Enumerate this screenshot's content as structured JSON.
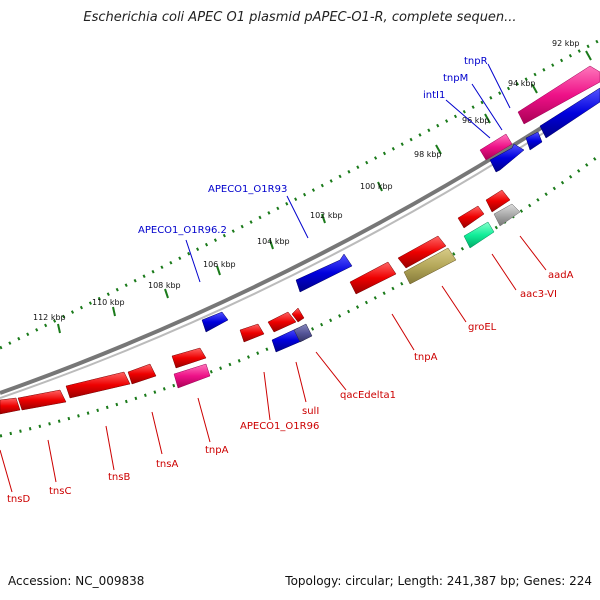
{
  "title": "Escherichia coli APEC O1 plasmid pAPEC-O1-R, complete sequen...",
  "footer": {
    "accession": "Accession: NC_009838",
    "summary": "Topology: circular; Length: 241,387 bp; Genes: 224"
  },
  "ticks": [
    "92 kbp",
    "94 kbp",
    "96 kbp",
    "98 kbp",
    "100 kbp",
    "102 kbp",
    "104 kbp",
    "106 kbp",
    "108 kbp",
    "110 kbp",
    "112 kbp"
  ],
  "labels": {
    "tnpR": "tnpR",
    "tnpM": "tnpM",
    "intI1": "intI1",
    "apeco1_o1r93": "APECO1_O1R93",
    "apeco1_o1r96_2": "APECO1_O1R96.2",
    "aadA": "aadA",
    "aac3_vi": "aac3-VI",
    "groEL": "groEL",
    "tnpA_1": "tnpA",
    "qacEdelta1": "qacEdelta1",
    "sulI": "sulI",
    "apeco1_o1r96": "APECO1_O1R96",
    "tnpA_2": "tnpA",
    "tnsA": "tnsA",
    "tnsB": "tnsB",
    "tnsC": "tnsC",
    "tnsD": "tnsD"
  },
  "colors": {
    "red": "#ee0000",
    "blue": "#0000dd",
    "pink": "#ee1188",
    "teal": "#11ee99",
    "olive": "#b5a85a",
    "grey": "#aaaaaa",
    "navy": "#555599",
    "tick": "#1a7a1a",
    "backbone": "#888888"
  }
}
